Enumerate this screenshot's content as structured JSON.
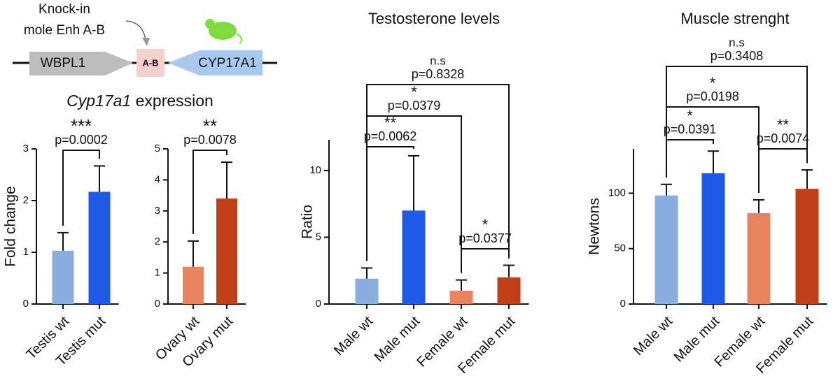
{
  "diagram": {
    "note_line1": "Knock-in",
    "note_line2": "mole Enh A-B",
    "gene_left": "WBPL1",
    "element": "A-B",
    "gene_right": "CYP17A1"
  },
  "panel_title": {
    "gene": "Cyp17a1",
    "rest": "expression"
  },
  "chart_data": [
    {
      "type": "bar",
      "ylabel": "Fold change",
      "categories": [
        "Testis wt",
        "Testis mut"
      ],
      "values": [
        1.03,
        2.17
      ],
      "errors": [
        0.35,
        0.5
      ],
      "colors": [
        "#8aaee0",
        "#1f5ae6"
      ],
      "ylim": [
        0,
        3
      ],
      "yticks": [
        0,
        1,
        2,
        3
      ],
      "annotations": [
        {
          "label": "***",
          "p": "p=0.0002"
        }
      ]
    },
    {
      "type": "bar",
      "categories": [
        "Ovary wt",
        "Ovary mut"
      ],
      "values": [
        1.2,
        3.4
      ],
      "errors": [
        0.83,
        1.17
      ],
      "colors": [
        "#e8835f",
        "#c0401a"
      ],
      "ylim": [
        0,
        5
      ],
      "yticks": [
        0,
        1,
        2,
        3,
        4,
        5
      ],
      "annotations": [
        {
          "label": "**",
          "p": "p=0.0078"
        }
      ]
    },
    {
      "type": "bar",
      "title": "Testosterone levels",
      "ylabel": "Ratio",
      "categories": [
        "Male wt",
        "Male mut",
        "Female wt",
        "Female mut"
      ],
      "values": [
        1.9,
        7.0,
        1.0,
        2.0
      ],
      "errors": [
        0.8,
        4.1,
        0.8,
        0.9
      ],
      "colors": [
        "#8aaee0",
        "#1f5ae6",
        "#e8835f",
        "#c0401a"
      ],
      "ylim": [
        0,
        12.3
      ],
      "yticks": [
        0,
        5,
        10
      ],
      "annotations": [
        {
          "label": "**",
          "p": "p=0.0062"
        },
        {
          "label": "*",
          "p": "p=0.0379"
        },
        {
          "label": "n.s",
          "p": "p=0.8328"
        },
        {
          "label": "*",
          "p": "p=0.0377"
        }
      ]
    },
    {
      "type": "bar",
      "title": "Muscle strenght",
      "ylabel": "Newtons",
      "categories": [
        "Male wt",
        "Male mut",
        "Female wt",
        "Female mut"
      ],
      "values": [
        98,
        118,
        82,
        104
      ],
      "errors": [
        10,
        20,
        12,
        17
      ],
      "colors": [
        "#8aaee0",
        "#1f5ae6",
        "#e8835f",
        "#c0401a"
      ],
      "ylim": [
        0,
        140
      ],
      "yticks": [
        0,
        50,
        100
      ],
      "annotations": [
        {
          "label": "*",
          "p": "p=0.0391"
        },
        {
          "label": "*",
          "p": "p=0.0198"
        },
        {
          "label": "n.s",
          "p": "p=0.3408"
        },
        {
          "label": "**",
          "p": "p=0.0074"
        }
      ]
    }
  ]
}
